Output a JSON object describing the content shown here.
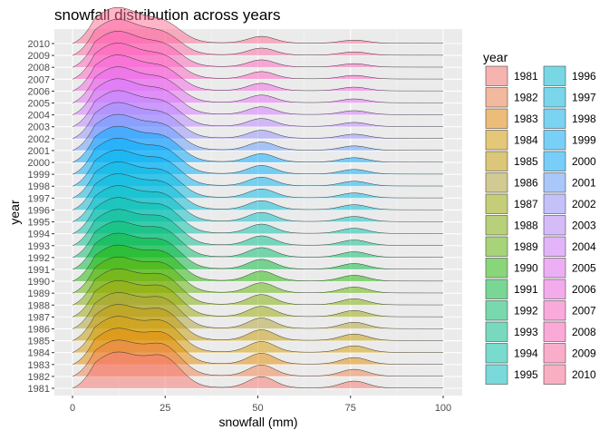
{
  "chart_data": {
    "type": "ridgeline",
    "title": "snowfall distribution across years",
    "xlabel": "snowfall (mm)",
    "ylabel": "year",
    "xlim": [
      0,
      100
    ],
    "x_ticks": [
      0,
      25,
      50,
      75,
      100
    ],
    "grid": true,
    "legend_position": "right",
    "legend_title": "year",
    "years": [
      "1981",
      "1982",
      "1983",
      "1984",
      "1985",
      "1986",
      "1987",
      "1988",
      "1989",
      "1990",
      "1991",
      "1992",
      "1993",
      "1994",
      "1995",
      "1996",
      "1997",
      "1998",
      "1999",
      "2000",
      "2001",
      "2002",
      "2003",
      "2004",
      "2005",
      "2006",
      "2007",
      "2008",
      "2009",
      "2010"
    ],
    "colors": [
      "#F8766D",
      "#EF7F49",
      "#E58700",
      "#D59C00",
      "#C49A00",
      "#B0A231",
      "#99A800",
      "#7CAE00",
      "#5BB300",
      "#1FB700",
      "#00BA38",
      "#00BE67",
      "#00C08B",
      "#00C1A9",
      "#00BFC4",
      "#00BCD8",
      "#00B9E3",
      "#00B4EF",
      "#00ADFA",
      "#00A9FF",
      "#619CFF",
      "#9590FF",
      "#B983FF",
      "#D376FF",
      "#E76BF3",
      "#F564E3",
      "#FF61C3",
      "#FF62BC",
      "#FF67A4",
      "#FF6C91"
    ],
    "density_peaks": {
      "x": [
        12,
        25,
        51,
        76
      ],
      "relative_height": [
        1.0,
        0.72,
        0.32,
        0.2
      ]
    }
  }
}
